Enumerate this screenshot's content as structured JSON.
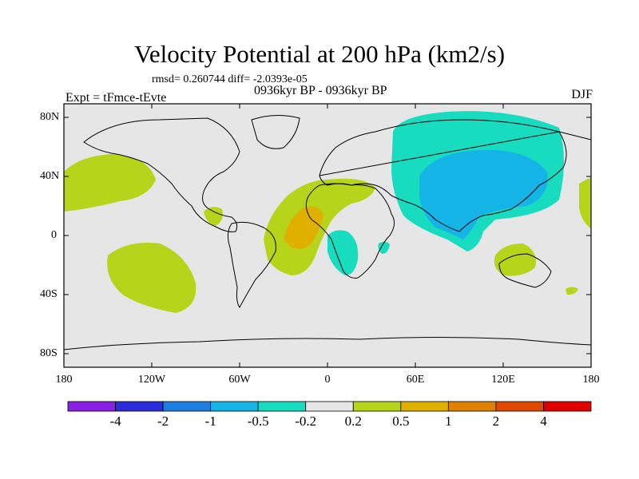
{
  "title": "Velocity Potential at 200 hPa (km2/s)",
  "stats_line": "rmsd= 0.260744 diff= -2.0393e-05",
  "subtitle": "0936kyr BP - 0936kyr BP",
  "left_label": "Expt = tFmce-tEvte",
  "right_label": "DJF",
  "lat_labels": [
    "80N",
    "40N",
    "0",
    "40S",
    "80S"
  ],
  "lon_labels": [
    "180",
    "120W",
    "60W",
    "0",
    "60E",
    "120E",
    "180"
  ],
  "colorbar": {
    "labels": [
      "-4",
      "-2",
      "-1",
      "-0.5",
      "-0.2",
      "0.2",
      "0.5",
      "1",
      "2",
      "4"
    ],
    "colors": [
      "#8a1fe6",
      "#2b2bd9",
      "#1c7fe0",
      "#14b4e6",
      "#18dcc0",
      "#e6e6e6",
      "#b5d41a",
      "#e0b000",
      "#e08000",
      "#e04a00",
      "#e00000"
    ]
  },
  "map_colors": {
    "background": "#e6e6e6",
    "neg_low": "#18dcc0",
    "neg_mid": "#14b4e6",
    "pos_low": "#b5d41a",
    "pos_mid": "#e0b000"
  }
}
